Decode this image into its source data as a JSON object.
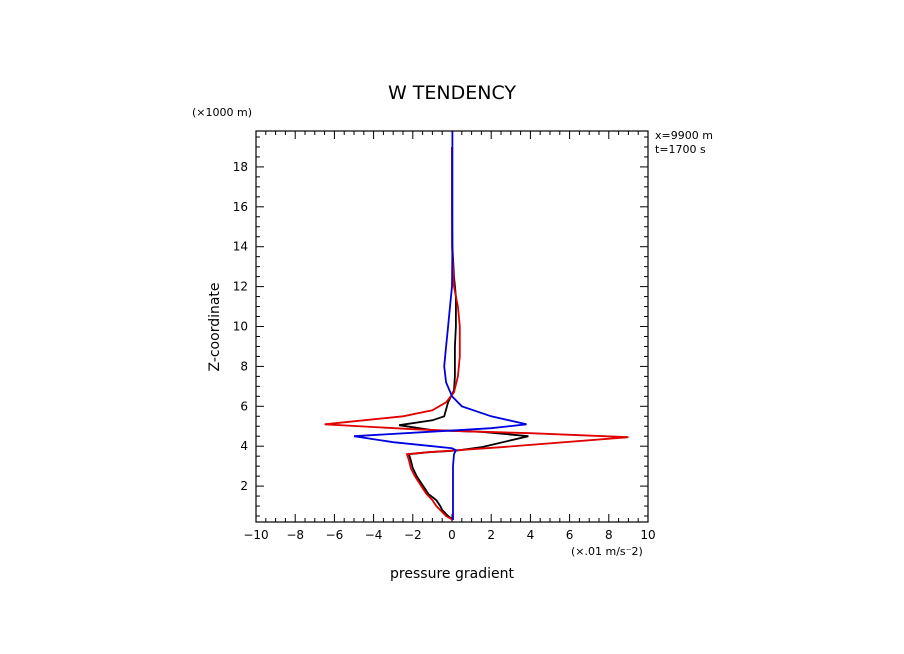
{
  "chart_data": {
    "type": "line",
    "title": "W TENDENCY",
    "xlabel": "pressure gradient",
    "ylabel": "Z-coordinate",
    "x_units": "(×.01 m/s⁻2)",
    "y_units": "(×1000 m)",
    "annotations": [
      "x=9900 m",
      "t=1700 s"
    ],
    "xlim": [
      -10,
      10
    ],
    "ylim": [
      0.2,
      19.8
    ],
    "xticks": [
      -10,
      -8,
      -6,
      -4,
      -2,
      0,
      2,
      4,
      6,
      8,
      10
    ],
    "yticks": [
      2,
      4,
      6,
      8,
      10,
      12,
      14,
      16,
      18
    ],
    "grid": false,
    "series": [
      {
        "color": "#000000",
        "points": [
          [
            0.05,
            0.3
          ],
          [
            -0.2,
            0.5
          ],
          [
            -0.5,
            0.8
          ],
          [
            -0.6,
            1.0
          ],
          [
            -0.8,
            1.3
          ],
          [
            -1.2,
            1.6
          ],
          [
            -1.4,
            1.9
          ],
          [
            -1.6,
            2.2
          ],
          [
            -1.8,
            2.5
          ],
          [
            -2.0,
            2.9
          ],
          [
            -2.1,
            3.3
          ],
          [
            -2.2,
            3.6
          ],
          [
            -1.2,
            3.7
          ],
          [
            -0.3,
            3.75
          ],
          [
            0.4,
            3.8
          ],
          [
            1.5,
            3.95
          ],
          [
            3.9,
            4.5
          ],
          [
            1.5,
            4.72
          ],
          [
            -1.0,
            4.8
          ],
          [
            -2.7,
            5.05
          ],
          [
            -1.0,
            5.3
          ],
          [
            -0.4,
            5.5
          ],
          [
            -0.2,
            6.2
          ],
          [
            0.1,
            6.8
          ],
          [
            0.15,
            7.5
          ],
          [
            0.15,
            9
          ],
          [
            0.2,
            10
          ],
          [
            0.2,
            11.5
          ],
          [
            0.1,
            12.5
          ],
          [
            0.02,
            14
          ],
          [
            0.0,
            16
          ],
          [
            0.0,
            17
          ],
          [
            0.0,
            19
          ]
        ]
      },
      {
        "color": "#e00000",
        "points": [
          [
            0.05,
            0.3
          ],
          [
            -0.3,
            0.5
          ],
          [
            -0.6,
            0.8
          ],
          [
            -0.8,
            1.0
          ],
          [
            -1.0,
            1.3
          ],
          [
            -1.3,
            1.6
          ],
          [
            -1.5,
            1.9
          ],
          [
            -1.7,
            2.2
          ],
          [
            -1.9,
            2.5
          ],
          [
            -2.1,
            2.9
          ],
          [
            -2.2,
            3.3
          ],
          [
            -2.3,
            3.6
          ],
          [
            -1.2,
            3.7
          ],
          [
            0.3,
            3.8
          ],
          [
            2.5,
            3.95
          ],
          [
            9.0,
            4.45
          ],
          [
            4.0,
            4.65
          ],
          [
            0.5,
            4.75
          ],
          [
            -2.0,
            4.85
          ],
          [
            -6.5,
            5.1
          ],
          [
            -2.5,
            5.5
          ],
          [
            -1.0,
            5.8
          ],
          [
            -0.3,
            6.2
          ],
          [
            0.1,
            6.7
          ],
          [
            0.3,
            7.5
          ],
          [
            0.4,
            8.5
          ],
          [
            0.4,
            10
          ],
          [
            0.3,
            11
          ],
          [
            0.1,
            12
          ],
          [
            0.05,
            13
          ],
          [
            0.0,
            14
          ],
          [
            0.0,
            15
          ],
          [
            0.0,
            17
          ],
          [
            0.0,
            19
          ]
        ]
      },
      {
        "color": "#0000e0",
        "points": [
          [
            0.05,
            0.3
          ],
          [
            0.05,
            1.0
          ],
          [
            0.05,
            2.0
          ],
          [
            0.05,
            3.0
          ],
          [
            0.1,
            3.6
          ],
          [
            0.2,
            3.8
          ],
          [
            0.0,
            3.9
          ],
          [
            -1.0,
            4.0
          ],
          [
            -3.0,
            4.2
          ],
          [
            -5.0,
            4.5
          ],
          [
            -1.5,
            4.7
          ],
          [
            0.3,
            4.8
          ],
          [
            2.0,
            4.9
          ],
          [
            3.8,
            5.1
          ],
          [
            2.0,
            5.5
          ],
          [
            0.5,
            6.0
          ],
          [
            0.0,
            6.5
          ],
          [
            -0.3,
            7.2
          ],
          [
            -0.4,
            8
          ],
          [
            -0.3,
            9
          ],
          [
            -0.2,
            10
          ],
          [
            -0.1,
            11
          ],
          [
            0.0,
            12
          ],
          [
            0.02,
            14
          ],
          [
            0.02,
            16
          ],
          [
            0.02,
            18
          ],
          [
            0.02,
            19.8
          ]
        ]
      }
    ]
  }
}
